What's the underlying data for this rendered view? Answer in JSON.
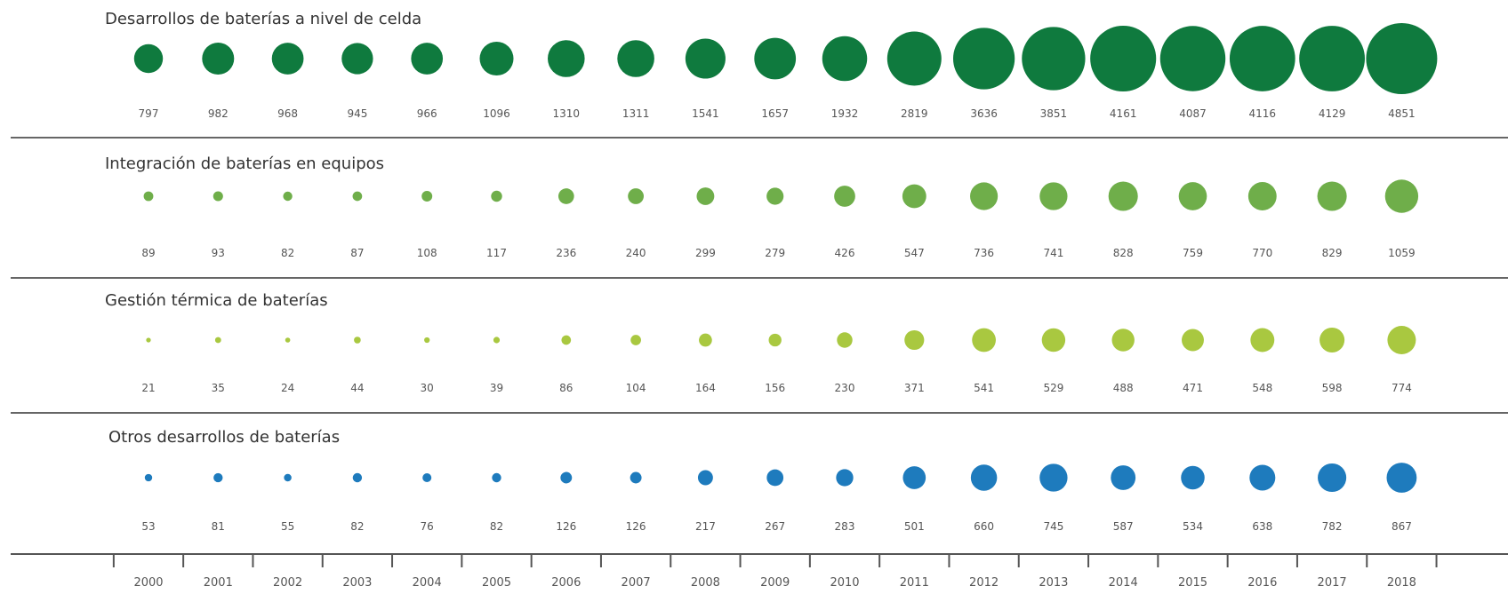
{
  "chart_data": {
    "type": "scatter",
    "title": "",
    "x": [
      "2000",
      "2001",
      "2002",
      "2003",
      "2004",
      "2005",
      "2006",
      "2007",
      "2008",
      "2009",
      "2010",
      "2011",
      "2012",
      "2013",
      "2014",
      "2015",
      "2016",
      "2017",
      "2018"
    ],
    "series": [
      {
        "name": "Desarrollos de baterías a nivel de celda",
        "color": "#0f7a3e",
        "values": [
          797,
          982,
          968,
          945,
          966,
          1096,
          1310,
          1311,
          1541,
          1657,
          1932,
          2819,
          3636,
          3851,
          4161,
          4087,
          4116,
          4129,
          4851
        ]
      },
      {
        "name": "Integración de baterías en equipos",
        "color": "#6fae4a",
        "values": [
          89,
          93,
          82,
          87,
          108,
          117,
          236,
          240,
          299,
          279,
          426,
          547,
          736,
          741,
          828,
          759,
          770,
          829,
          1059
        ]
      },
      {
        "name": "Gestión térmica de baterías",
        "color": "#a9c840",
        "values": [
          21,
          35,
          24,
          44,
          30,
          39,
          86,
          104,
          164,
          156,
          230,
          371,
          541,
          529,
          488,
          471,
          548,
          598,
          774
        ]
      },
      {
        "name": "Otros desarrollos de baterías",
        "color": "#1e7bbd",
        "values": [
          53,
          81,
          55,
          82,
          76,
          82,
          126,
          126,
          217,
          267,
          283,
          501,
          660,
          745,
          587,
          534,
          638,
          782,
          867
        ]
      }
    ],
    "legend": "none",
    "grid": false
  }
}
